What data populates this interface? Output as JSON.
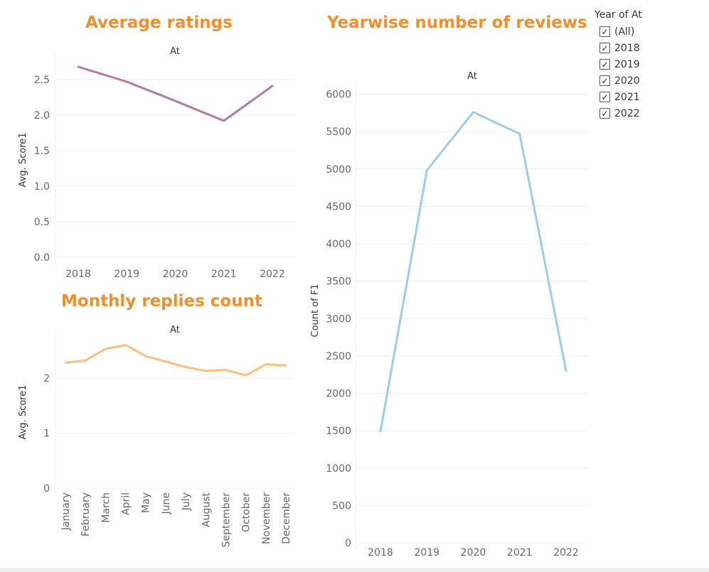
{
  "dashboard": {
    "title_avg": "Average ratings",
    "title_monthly": "Monthly replies count",
    "title_yearwise": "Yearwise number of reviews"
  },
  "filter": {
    "title": "Year of At",
    "items": [
      {
        "label": "(All)",
        "checked": true
      },
      {
        "label": "2018",
        "checked": true
      },
      {
        "label": "2019",
        "checked": true
      },
      {
        "label": "2020",
        "checked": true
      },
      {
        "label": "2021",
        "checked": true
      },
      {
        "label": "2022",
        "checked": true
      }
    ],
    "check_glyph": "✓"
  },
  "chart_data": [
    {
      "type": "line",
      "title": "Average ratings",
      "header": "At",
      "ylabel": "Avg. Score1",
      "categories": [
        "2018",
        "2019",
        "2020",
        "2021",
        "2022"
      ],
      "values": [
        2.68,
        2.47,
        2.2,
        1.92,
        2.41
      ],
      "yticks": [
        "0.0",
        "0.5",
        "1.0",
        "1.5",
        "2.0",
        "2.5"
      ],
      "ylim": [
        0,
        2.8
      ],
      "color": "#b07aa1"
    },
    {
      "type": "line",
      "title": "Monthly replies count",
      "header": "At",
      "ylabel": "Avg. Score1",
      "categories": [
        "January",
        "February",
        "March",
        "April",
        "May",
        "June",
        "July",
        "August",
        "September",
        "October",
        "November",
        "December"
      ],
      "values": [
        2.28,
        2.32,
        2.53,
        2.6,
        2.4,
        2.3,
        2.2,
        2.13,
        2.15,
        2.05,
        2.25,
        2.23
      ],
      "yticks": [
        "0",
        "1",
        "2"
      ],
      "ylim": [
        0,
        2.75
      ],
      "color": "#ffbe7d"
    },
    {
      "type": "line",
      "title": "Yearwise number of reviews",
      "header": "At",
      "ylabel": "Count of F1",
      "categories": [
        "2018",
        "2019",
        "2020",
        "2021",
        "2022"
      ],
      "values": [
        1490,
        4980,
        5760,
        5470,
        2300
      ],
      "yticks": [
        "0",
        "500",
        "1000",
        "1500",
        "2000",
        "2500",
        "3000",
        "3500",
        "4000",
        "4500",
        "5000",
        "5500",
        "6000"
      ],
      "ylim": [
        0,
        6100
      ],
      "color": "#a0cbe8"
    }
  ]
}
